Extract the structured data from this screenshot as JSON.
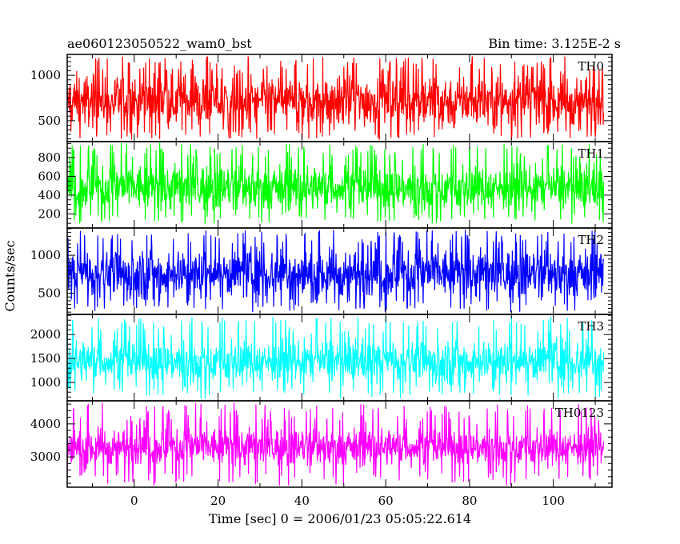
{
  "chart_data": {
    "type": "line",
    "title": "ae060123050522_wam0_bst",
    "subtitle": "Bin time: 3.125E-2 s",
    "xlabel": "Time [sec] 0 = 2006/01/23 05:05:22.614",
    "ylabel": "Counts/sec",
    "xlim": [
      -16,
      114
    ],
    "data_xrange": [
      -16,
      112
    ],
    "x_ticks": [
      "0",
      "20",
      "40",
      "60",
      "80",
      "100"
    ],
    "grid": false,
    "series": [
      {
        "name": "TH0",
        "color": "#ff0000",
        "ylim": [
          270,
          1230
        ],
        "y_ticks": [
          "500",
          "1000"
        ],
        "baseline": 720,
        "spread": 230,
        "low_range": [
          290,
          420
        ],
        "high_range": [
          1050,
          1210
        ]
      },
      {
        "name": "TH1",
        "color": "#00ff00",
        "ylim": [
          50,
          970
        ],
        "y_ticks": [
          "200",
          "400",
          "600",
          "800"
        ],
        "baseline": 480,
        "spread": 190,
        "low_range": [
          95,
          200
        ],
        "high_range": [
          800,
          960
        ]
      },
      {
        "name": "TH2",
        "color": "#0000ff",
        "ylim": [
          220,
          1360
        ],
        "y_ticks": [
          "500",
          "1000"
        ],
        "baseline": 760,
        "spread": 250,
        "low_range": [
          250,
          420
        ],
        "high_range": [
          1150,
          1340
        ]
      },
      {
        "name": "TH3",
        "color": "#00ffff",
        "ylim": [
          620,
          2420
        ],
        "y_ticks": [
          "1000",
          "1500",
          "2000"
        ],
        "baseline": 1450,
        "spread": 350,
        "low_range": [
          660,
          950
        ],
        "high_range": [
          2050,
          2400
        ]
      },
      {
        "name": "TH0123",
        "color": "#ff00ff",
        "ylim": [
          2080,
          4700
        ],
        "y_ticks": [
          "3000",
          "4000"
        ],
        "baseline": 3300,
        "spread": 450,
        "low_range": [
          2120,
          2550
        ],
        "high_range": [
          4050,
          4650
        ]
      }
    ]
  }
}
